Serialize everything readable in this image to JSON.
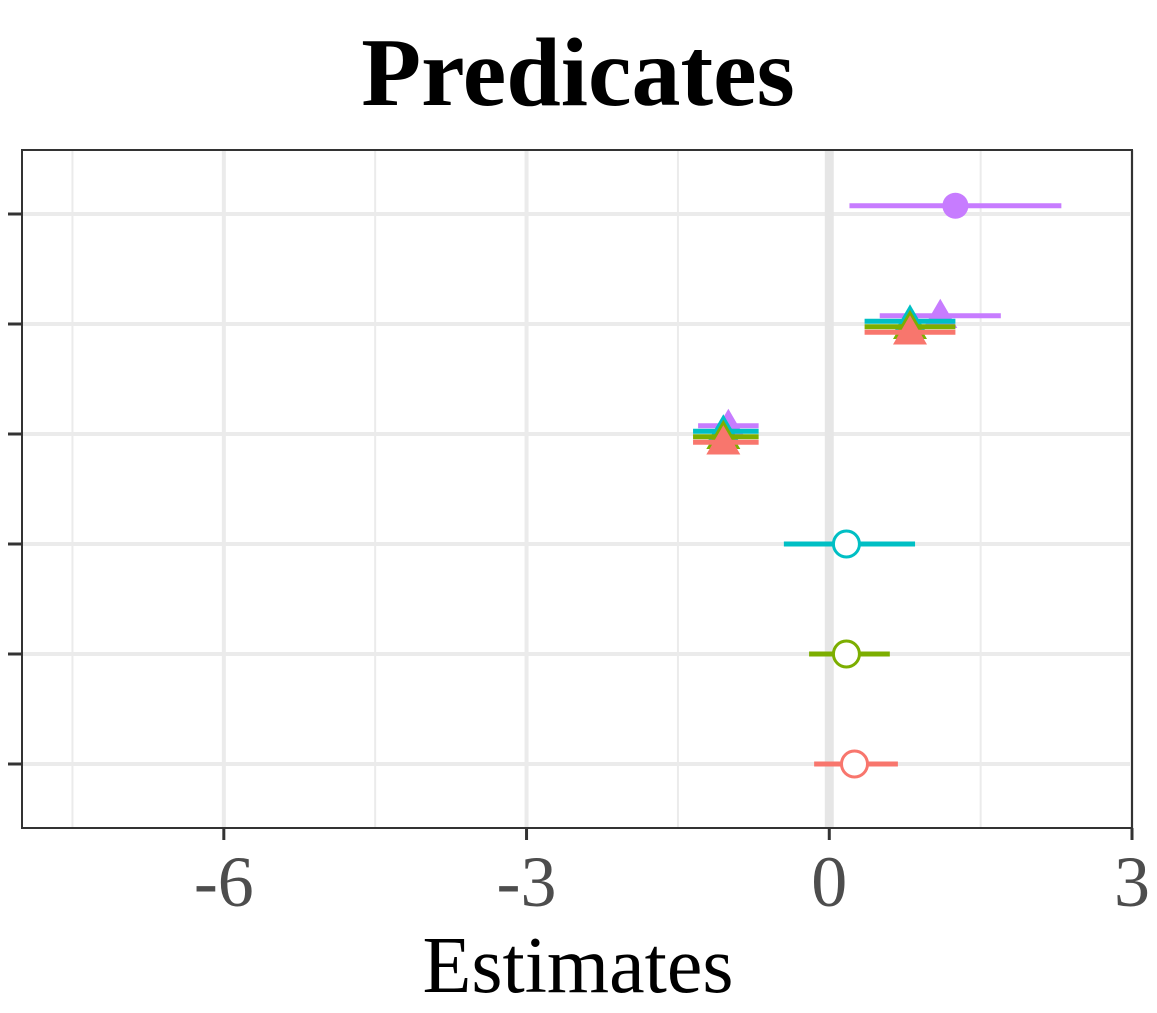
{
  "chart_data": {
    "type": "scatter",
    "title": "Predicates",
    "xlabel": "Estimates",
    "ylabel": "",
    "xlim": [
      -8.0,
      3.0
    ],
    "x_ticks": [
      -6,
      -3,
      0,
      3
    ],
    "x_tick_labels": [
      "-6",
      "-3",
      "0",
      "3"
    ],
    "y_rows": 6,
    "grid": true,
    "reference_line_x": 0,
    "legend": "none",
    "colors": {
      "red": "#F8766D",
      "green": "#7CAE00",
      "cyan": "#00BFC4",
      "purple": "#C77CFF"
    },
    "points": [
      {
        "row": 1,
        "offset": -0.15,
        "estimate": 1.25,
        "low": 0.2,
        "high": 2.3,
        "shape": "filled-circle",
        "color": "purple"
      },
      {
        "row": 2,
        "offset": -0.15,
        "estimate": 1.1,
        "low": 0.5,
        "high": 1.7,
        "shape": "triangle",
        "color": "purple"
      },
      {
        "row": 2,
        "offset": -0.05,
        "estimate": 0.8,
        "low": 0.35,
        "high": 1.25,
        "shape": "triangle",
        "color": "cyan"
      },
      {
        "row": 2,
        "offset": 0.05,
        "estimate": 0.8,
        "low": 0.35,
        "high": 1.25,
        "shape": "triangle",
        "color": "green"
      },
      {
        "row": 2,
        "offset": 0.15,
        "estimate": 0.8,
        "low": 0.35,
        "high": 1.25,
        "shape": "triangle",
        "color": "red"
      },
      {
        "row": 3,
        "offset": -0.15,
        "estimate": -1.0,
        "low": -1.3,
        "high": -0.7,
        "shape": "triangle",
        "color": "purple"
      },
      {
        "row": 3,
        "offset": -0.05,
        "estimate": -1.05,
        "low": -1.35,
        "high": -0.7,
        "shape": "triangle",
        "color": "cyan"
      },
      {
        "row": 3,
        "offset": 0.05,
        "estimate": -1.05,
        "low": -1.35,
        "high": -0.7,
        "shape": "triangle",
        "color": "green"
      },
      {
        "row": 3,
        "offset": 0.15,
        "estimate": -1.05,
        "low": -1.35,
        "high": -0.7,
        "shape": "triangle",
        "color": "red"
      },
      {
        "row": 4,
        "offset": 0,
        "estimate": 0.17,
        "low": -0.45,
        "high": 0.85,
        "shape": "open-circle",
        "color": "cyan"
      },
      {
        "row": 5,
        "offset": 0,
        "estimate": 0.17,
        "low": -0.2,
        "high": 0.6,
        "shape": "open-circle",
        "color": "green"
      },
      {
        "row": 6,
        "offset": 0,
        "estimate": 0.25,
        "low": -0.15,
        "high": 0.68,
        "shape": "open-circle",
        "color": "red"
      }
    ]
  }
}
